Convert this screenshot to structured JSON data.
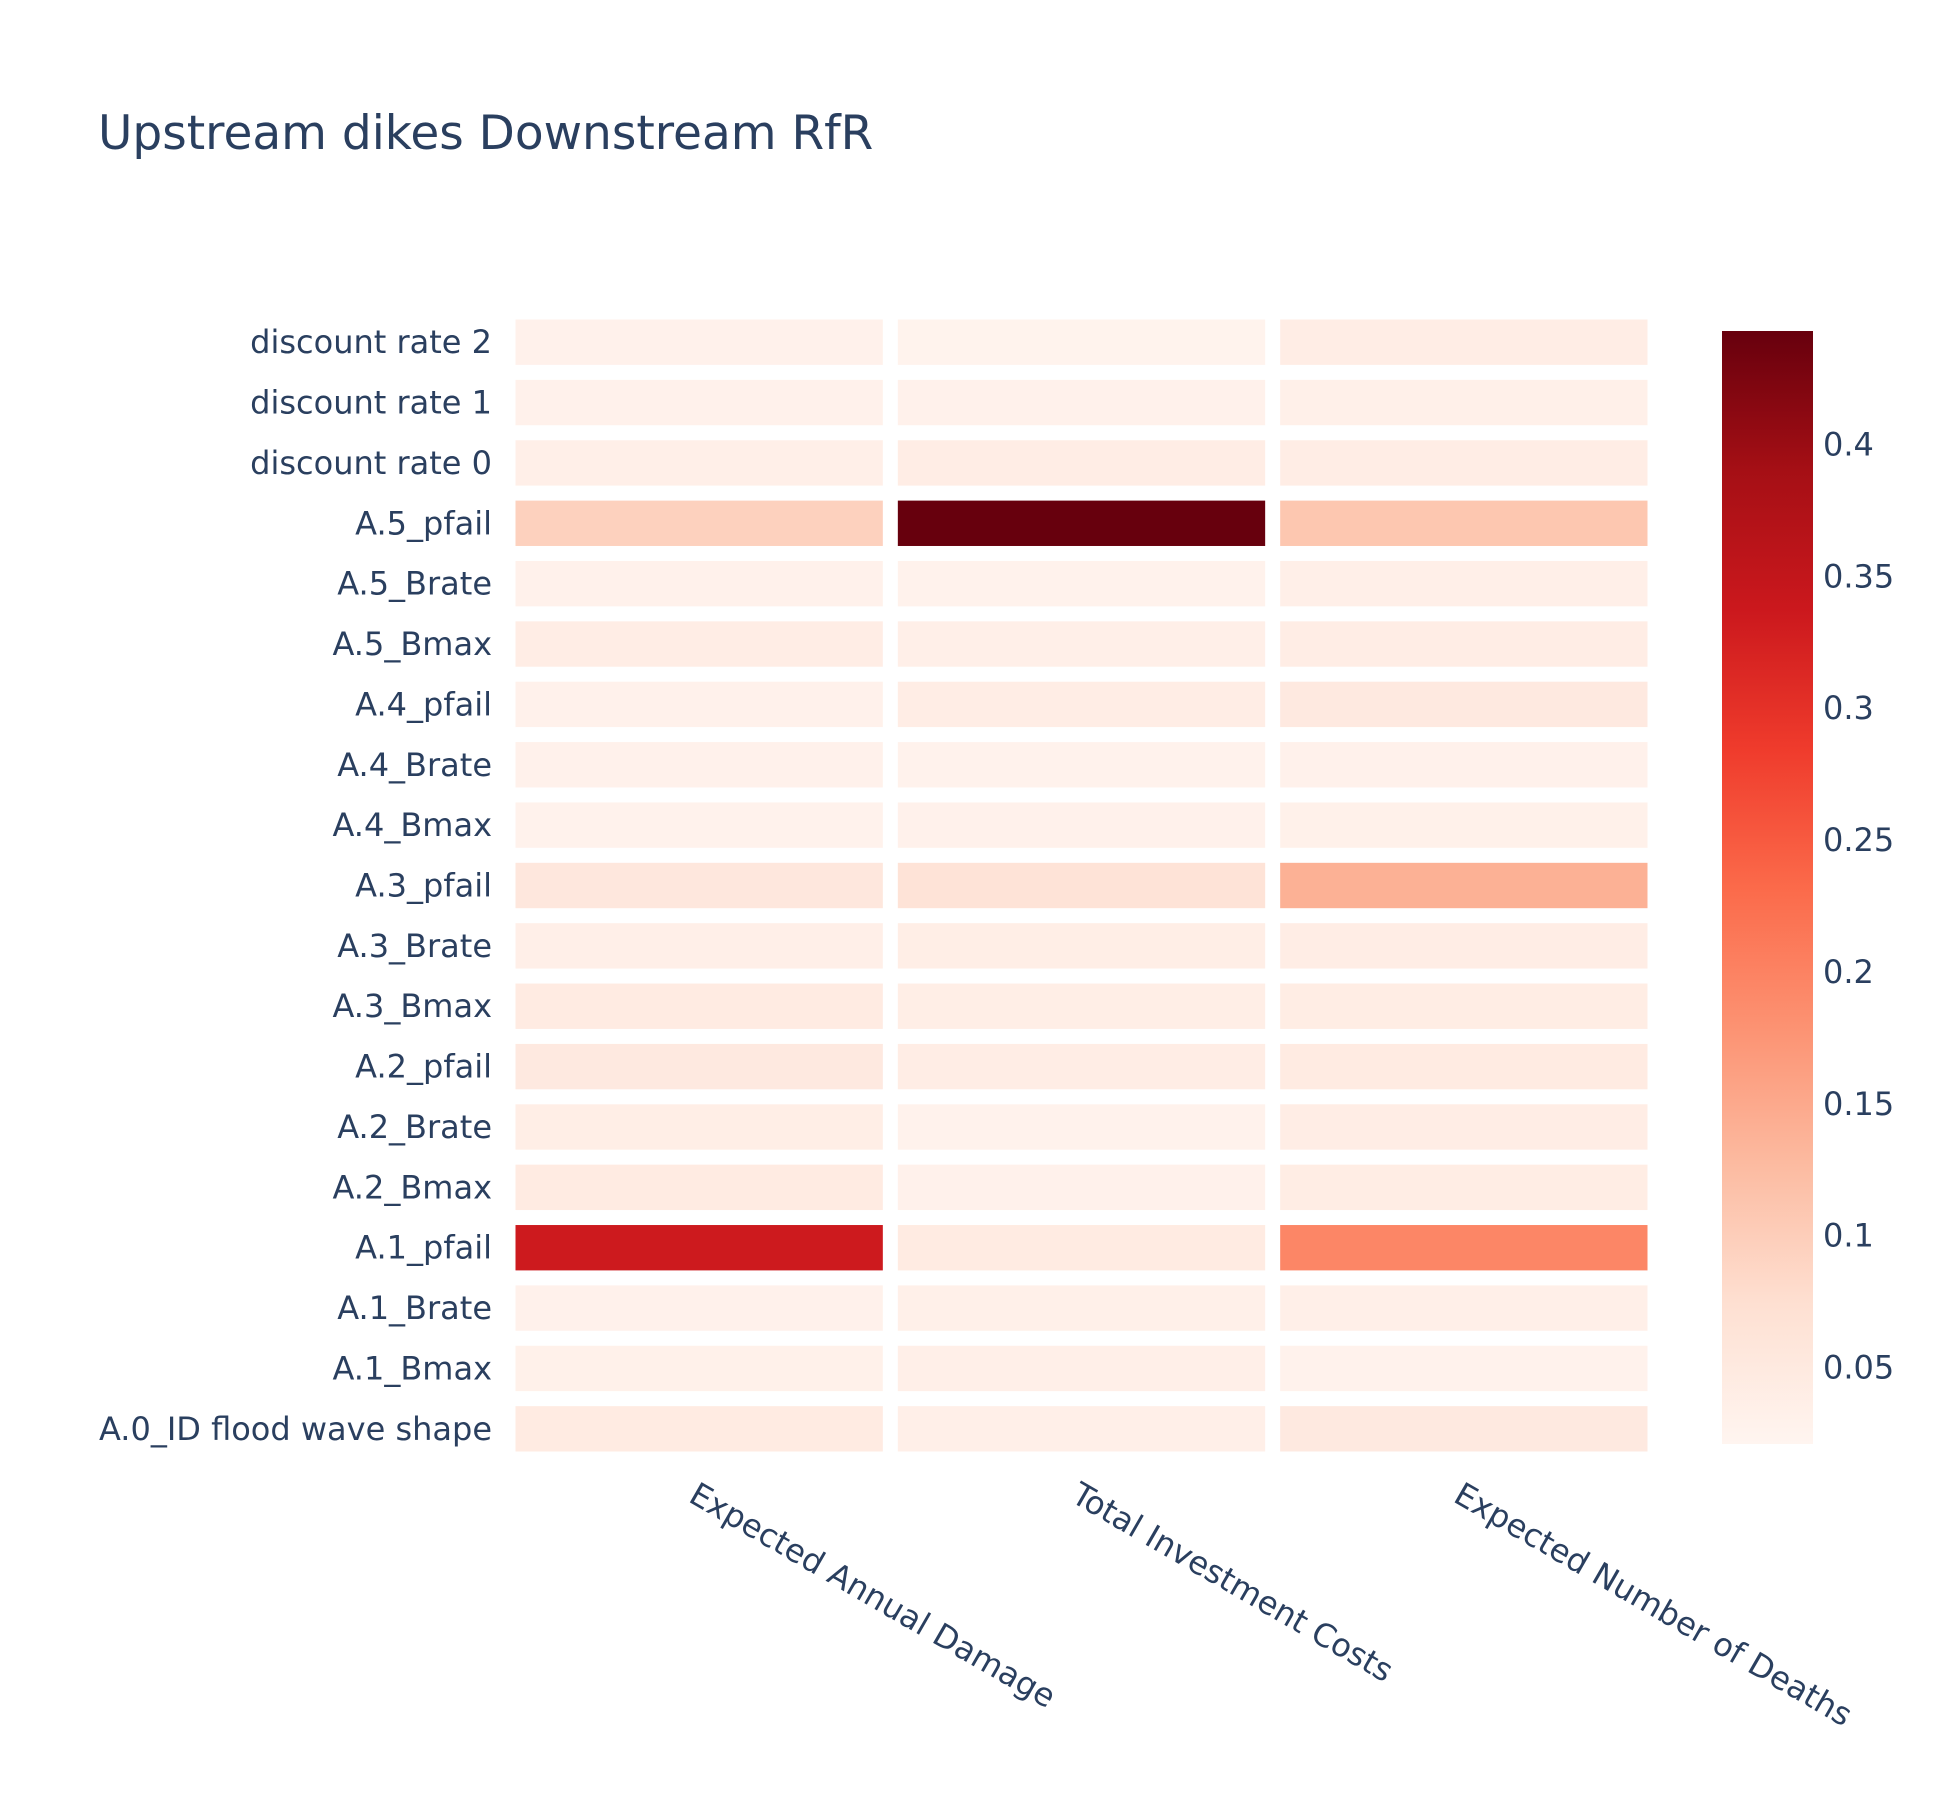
{
  "chart_data": {
    "type": "heatmap",
    "title": "Upstream dikes Downstream RfR",
    "xlabel": "",
    "ylabel": "",
    "colorscale": "Reds",
    "colorscale_colors": [
      "#fff5f0",
      "#fee0d2",
      "#fcbba1",
      "#fc9272",
      "#fb6a4a",
      "#ef3b2c",
      "#cb181d",
      "#a50f15",
      "#67000d"
    ],
    "zmin": 0.021,
    "zmax": 0.443,
    "colorbar_ticks": [
      0.05,
      0.1,
      0.15,
      0.2,
      0.25,
      0.3,
      0.35,
      0.4
    ],
    "colorbar_tick_labels": [
      "0.05",
      "0.1",
      "0.15",
      "0.2",
      "0.25",
      "0.3",
      "0.35",
      "0.4"
    ],
    "x": [
      "Expected Annual Damage",
      "Total Investment Costs",
      "Expected Number of Deaths"
    ],
    "y": [
      "A.0_ID flood wave shape",
      "A.1_Bmax",
      "A.1_Brate",
      "A.1_pfail",
      "A.2_Bmax",
      "A.2_Brate",
      "A.2_pfail",
      "A.3_Bmax",
      "A.3_Brate",
      "A.3_pfail",
      "A.4_Bmax",
      "A.4_Brate",
      "A.4_pfail",
      "A.5_Bmax",
      "A.5_Brate",
      "A.5_pfail",
      "discount rate 0",
      "discount rate 1",
      "discount rate 2"
    ],
    "z": [
      [
        0.045,
        0.035,
        0.05
      ],
      [
        0.032,
        0.035,
        0.028
      ],
      [
        0.03,
        0.033,
        0.035
      ],
      [
        0.335,
        0.045,
        0.195
      ],
      [
        0.045,
        0.03,
        0.042
      ],
      [
        0.038,
        0.028,
        0.04
      ],
      [
        0.05,
        0.04,
        0.045
      ],
      [
        0.045,
        0.038,
        0.042
      ],
      [
        0.035,
        0.038,
        0.04
      ],
      [
        0.055,
        0.065,
        0.14
      ],
      [
        0.028,
        0.03,
        0.032
      ],
      [
        0.03,
        0.028,
        0.03
      ],
      [
        0.03,
        0.04,
        0.05
      ],
      [
        0.04,
        0.035,
        0.04
      ],
      [
        0.03,
        0.028,
        0.035
      ],
      [
        0.095,
        0.443,
        0.11
      ],
      [
        0.035,
        0.04,
        0.04
      ],
      [
        0.03,
        0.03,
        0.033
      ],
      [
        0.03,
        0.027,
        0.04
      ]
    ]
  }
}
